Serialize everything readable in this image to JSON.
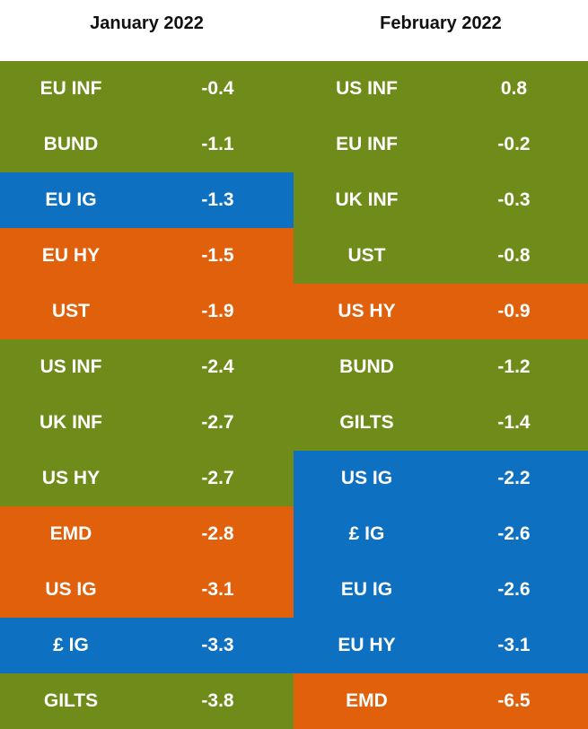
{
  "chart_data": {
    "type": "table",
    "headers": [
      "January 2022",
      "February 2022"
    ],
    "colors": {
      "green": "#6f8c1a",
      "blue": "#0e70c0",
      "orange": "#e0600c"
    },
    "columns": [
      {
        "month": "January 2022",
        "rows": [
          {
            "name": "EU INF",
            "value": "-0.4",
            "color": "#6f8c1a"
          },
          {
            "name": "BUND",
            "value": "-1.1",
            "color": "#6f8c1a"
          },
          {
            "name": "EU IG",
            "value": "-1.3",
            "color": "#0e70c0"
          },
          {
            "name": "EU HY",
            "value": "-1.5",
            "color": "#e0600c"
          },
          {
            "name": "UST",
            "value": "-1.9",
            "color": "#e0600c"
          },
          {
            "name": "US INF",
            "value": "-2.4",
            "color": "#6f8c1a"
          },
          {
            "name": "UK INF",
            "value": "-2.7",
            "color": "#6f8c1a"
          },
          {
            "name": "US HY",
            "value": "-2.7",
            "color": "#6f8c1a"
          },
          {
            "name": "EMD",
            "value": "-2.8",
            "color": "#e0600c"
          },
          {
            "name": "US IG",
            "value": "-3.1",
            "color": "#e0600c"
          },
          {
            "name": "£ IG",
            "value": "-3.3",
            "color": "#0e70c0"
          },
          {
            "name": "GILTS",
            "value": "-3.8",
            "color": "#6f8c1a"
          }
        ]
      },
      {
        "month": "February 2022",
        "rows": [
          {
            "name": "US INF",
            "value": "0.8",
            "color": "#6f8c1a"
          },
          {
            "name": "EU INF",
            "value": "-0.2",
            "color": "#6f8c1a"
          },
          {
            "name": "UK INF",
            "value": "-0.3",
            "color": "#6f8c1a"
          },
          {
            "name": "UST",
            "value": "-0.8",
            "color": "#6f8c1a"
          },
          {
            "name": "US HY",
            "value": "-0.9",
            "color": "#e0600c"
          },
          {
            "name": "BUND",
            "value": "-1.2",
            "color": "#6f8c1a"
          },
          {
            "name": "GILTS",
            "value": "-1.4",
            "color": "#6f8c1a"
          },
          {
            "name": "US IG",
            "value": "-2.2",
            "color": "#0e70c0"
          },
          {
            "name": "£ IG",
            "value": "-2.6",
            "color": "#0e70c0"
          },
          {
            "name": "EU IG",
            "value": "-2.6",
            "color": "#0e70c0"
          },
          {
            "name": "EU HY",
            "value": "-3.1",
            "color": "#0e70c0"
          },
          {
            "name": "EMD",
            "value": "-6.5",
            "color": "#e0600c"
          }
        ]
      }
    ]
  }
}
